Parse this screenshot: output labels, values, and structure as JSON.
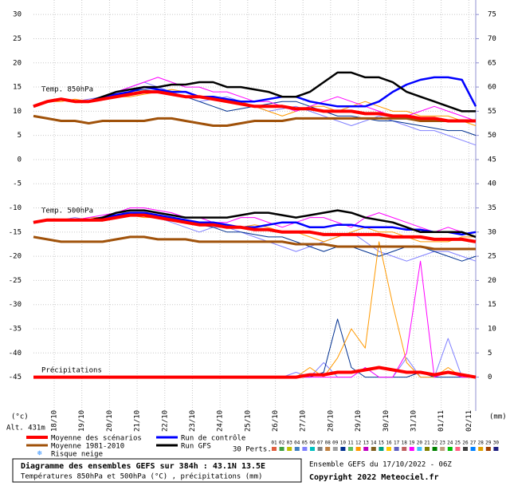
{
  "chart_data": {
    "type": "line",
    "x": [
      0,
      12,
      24,
      36,
      48,
      60,
      72,
      84,
      96,
      108,
      120,
      132,
      144,
      156,
      168,
      180,
      192,
      204,
      216,
      228,
      240,
      252,
      264,
      276,
      288,
      300,
      312,
      324,
      336,
      348,
      360,
      372,
      384
    ],
    "xlim": [
      0,
      384
    ],
    "xticks": [
      {
        "value": 18,
        "label": "18/10"
      },
      {
        "value": 42,
        "label": "19/10"
      },
      {
        "value": 66,
        "label": "20/10"
      },
      {
        "value": 90,
        "label": "21/10"
      },
      {
        "value": 114,
        "label": "22/10"
      },
      {
        "value": 138,
        "label": "23/10"
      },
      {
        "value": 162,
        "label": "24/10"
      },
      {
        "value": 186,
        "label": "25/10"
      },
      {
        "value": 210,
        "label": "26/10"
      },
      {
        "value": 234,
        "label": "27/10"
      },
      {
        "value": 258,
        "label": "28/10"
      },
      {
        "value": 282,
        "label": "29/10"
      },
      {
        "value": 306,
        "label": "30/10"
      },
      {
        "value": 330,
        "label": "31/10"
      },
      {
        "value": 354,
        "label": "01/11"
      },
      {
        "value": 378,
        "label": "02/11"
      }
    ],
    "ylim": [
      -52,
      33
    ],
    "yticks": [
      30,
      25,
      20,
      15,
      10,
      5,
      0,
      -5,
      -10,
      -15,
      -20,
      -25,
      -30,
      -35,
      -40,
      -45
    ],
    "y2lim": [
      -7,
      78
    ],
    "y2ticks": [
      75,
      70,
      65,
      60,
      55,
      50,
      45,
      40,
      35,
      30,
      25,
      20,
      15,
      10,
      5,
      0
    ],
    "grid": true,
    "y_unit_label": "(°c)",
    "y2_unit_label": "(mm)",
    "altitude_label": "Alt. 431m",
    "panel_labels": [
      "Temp. 850hPa",
      "Temp. 500hPa",
      "Précipitations"
    ],
    "series": [
      {
        "name": "Moyenne 1981-2010",
        "color": "#a0520a",
        "values_850": [
          9,
          8.5,
          8,
          8,
          7.5,
          8,
          8,
          8,
          8,
          8.5,
          8.5,
          8,
          7.5,
          7,
          7,
          7.5,
          8,
          8,
          8,
          8.5,
          8.5,
          8.5,
          8.5,
          8.5,
          8.5,
          8.5,
          8.5,
          8.5,
          8,
          8,
          8,
          8,
          8
        ],
        "values_500": [
          -16,
          -16.5,
          -17,
          -17,
          -17,
          -17,
          -16.5,
          -16,
          -16,
          -16.5,
          -16.5,
          -16.5,
          -17,
          -17,
          -17,
          -17,
          -17,
          -17,
          -17,
          -17.5,
          -17.5,
          -17.5,
          -18,
          -18,
          -18,
          -18,
          -18,
          -18,
          -18,
          -18.5,
          -18.5,
          -18.5,
          -18.5
        ]
      },
      {
        "name": "Run de contrôle",
        "color": "#0000ff",
        "values_850": [
          11,
          12,
          12.5,
          12,
          12,
          13,
          13.5,
          14,
          15,
          14.5,
          14,
          14,
          13,
          13,
          12.5,
          12,
          12,
          12.5,
          13,
          13,
          12,
          11.5,
          11,
          11,
          11,
          12,
          14,
          15.5,
          16.5,
          17,
          17,
          16.5,
          11
        ],
        "values_500": [
          -13,
          -12.5,
          -12.5,
          -12.5,
          -12.5,
          -12,
          -11.5,
          -11,
          -11,
          -11.5,
          -12,
          -12.5,
          -13,
          -13,
          -13.5,
          -14,
          -14,
          -13.5,
          -13,
          -13,
          -14,
          -14,
          -13.5,
          -13.5,
          -14,
          -14,
          -14,
          -14.5,
          -14.5,
          -15,
          -15,
          -15.5,
          -15
        ]
      },
      {
        "name": "Run GFS",
        "color": "#000000",
        "values_850": [
          11,
          12,
          12.5,
          12,
          12,
          13,
          14,
          14.5,
          15,
          15,
          15.5,
          15.5,
          16,
          16,
          15,
          15,
          14.5,
          14,
          13,
          13,
          14,
          16,
          18,
          18,
          17,
          17,
          16,
          14,
          13,
          12,
          11,
          10,
          10
        ],
        "values_500": [
          -13,
          -12.5,
          -12.5,
          -12.5,
          -12.5,
          -12,
          -11,
          -10.5,
          -10.5,
          -11,
          -11.5,
          -12,
          -12,
          -12,
          -12,
          -11.5,
          -11,
          -11,
          -11.5,
          -12,
          -11.5,
          -11,
          -10.5,
          -11,
          -12,
          -12.5,
          -13,
          -14,
          -15,
          -15,
          -15,
          -15,
          -16
        ]
      },
      {
        "name": "Moyenne des scénarios",
        "color": "#ff0000",
        "values_850": [
          11,
          12,
          12.5,
          12,
          12,
          12.5,
          13,
          13.5,
          14,
          14,
          13.5,
          13,
          13,
          12.5,
          12,
          11.5,
          11,
          11,
          11,
          10.5,
          10.5,
          10,
          10,
          10,
          9.5,
          9.5,
          9,
          9,
          8.5,
          8.5,
          8,
          8,
          8
        ],
        "values_500": [
          -13,
          -12.5,
          -12.5,
          -12.5,
          -12.5,
          -12.5,
          -12,
          -11.5,
          -11.5,
          -12,
          -12.5,
          -13,
          -13.5,
          -13.5,
          -14,
          -14,
          -14.5,
          -14.5,
          -15,
          -15,
          -15,
          -15.5,
          -15.5,
          -15.5,
          -15.5,
          -15.5,
          -16,
          -16,
          -16,
          -16.5,
          -16.5,
          -16.5,
          -17
        ],
        "values_precip": [
          0,
          0,
          0,
          0,
          0,
          0,
          0,
          0,
          0,
          0,
          0,
          0,
          0,
          0,
          0,
          0,
          0,
          0,
          0,
          0,
          0.5,
          0.5,
          1,
          1,
          1.5,
          2,
          1.5,
          1,
          1,
          0.5,
          1,
          0.5,
          0
        ]
      }
    ],
    "legend_extra": "Risque neige",
    "perturbations": {
      "label": "30 Perts.",
      "members": [
        {
          "name": "01",
          "color": "#e06040"
        },
        {
          "name": "02",
          "color": "#40a040"
        },
        {
          "name": "03",
          "color": "#c0c000"
        },
        {
          "name": "04",
          "color": "#4080c0"
        },
        {
          "name": "05",
          "color": "#8080ff"
        },
        {
          "name": "06",
          "color": "#00c0c0"
        },
        {
          "name": "07",
          "color": "#808080"
        },
        {
          "name": "08",
          "color": "#c08040"
        },
        {
          "name": "09",
          "color": "#a0a0a0"
        },
        {
          "name": "10",
          "color": "#003090"
        },
        {
          "name": "11",
          "color": "#60c060"
        },
        {
          "name": "12",
          "color": "#ff9900"
        },
        {
          "name": "13",
          "color": "#c000c0"
        },
        {
          "name": "14",
          "color": "#806020"
        },
        {
          "name": "15",
          "color": "#00a080"
        },
        {
          "name": "16",
          "color": "#ffcc00"
        },
        {
          "name": "17",
          "color": "#6060c0"
        },
        {
          "name": "18",
          "color": "#c06060"
        },
        {
          "name": "19",
          "color": "#ff00ff"
        },
        {
          "name": "20",
          "color": "#40c0ff"
        },
        {
          "name": "21",
          "color": "#808000"
        },
        {
          "name": "22",
          "color": "#008000"
        },
        {
          "name": "23",
          "color": "#c0a080"
        },
        {
          "name": "24",
          "color": "#00c000"
        },
        {
          "name": "25",
          "color": "#ff6080"
        },
        {
          "name": "26",
          "color": "#404040"
        },
        {
          "name": "27",
          "color": "#0080ff"
        },
        {
          "name": "28",
          "color": "#e0a000"
        },
        {
          "name": "29",
          "color": "#a04000"
        },
        {
          "name": "30",
          "color": "#202080"
        }
      ],
      "series": [
        {
          "name": "05",
          "color": "#8080ff",
          "values_850": [
            11,
            12,
            12.5,
            12,
            12.5,
            13,
            14,
            15,
            16,
            15,
            14,
            13,
            12,
            12.5,
            13,
            12,
            11,
            10,
            10.5,
            11,
            10,
            9,
            8,
            7,
            8,
            9,
            8,
            7,
            6,
            6,
            5,
            4,
            3
          ],
          "values_500": [
            -13,
            -12.5,
            -12.5,
            -12,
            -12.5,
            -12,
            -11,
            -11,
            -11.5,
            -12,
            -13,
            -14,
            -15,
            -14,
            -14,
            -15,
            -16,
            -17,
            -18,
            -19,
            -18,
            -17,
            -16,
            -15,
            -17,
            -19,
            -20,
            -21,
            -20,
            -19,
            -19,
            -20,
            -21
          ],
          "values_precip": [
            0,
            0,
            0,
            0,
            0,
            0,
            0,
            0,
            0,
            0,
            0,
            0,
            0,
            0,
            0,
            0,
            0,
            0,
            0,
            1,
            0,
            3,
            0,
            0,
            2,
            0,
            0,
            4,
            0,
            0,
            8,
            0,
            0
          ]
        },
        {
          "name": "10",
          "color": "#003090",
          "values_850": [
            11,
            12,
            12.5,
            12,
            12,
            12.5,
            13,
            14,
            14.5,
            14,
            13.5,
            13,
            12,
            11,
            10,
            10.5,
            11,
            11.5,
            12,
            12,
            11,
            10,
            9,
            9,
            8.5,
            8,
            8,
            7.5,
            7,
            6.5,
            6,
            6,
            5
          ],
          "values_500": [
            -13,
            -12.5,
            -12.5,
            -12.5,
            -12.5,
            -12,
            -11.5,
            -11,
            -11.5,
            -12,
            -12.5,
            -13,
            -13.5,
            -14,
            -15,
            -15,
            -15.5,
            -16,
            -16,
            -17,
            -18,
            -19,
            -18,
            -18,
            -19,
            -20,
            -19,
            -18,
            -18,
            -19,
            -20,
            -21,
            -20
          ],
          "values_precip": [
            0,
            0,
            0,
            0,
            0,
            0,
            0,
            0,
            0,
            0,
            0,
            0,
            0,
            0,
            0,
            0,
            0,
            0,
            0,
            0,
            0,
            1,
            12,
            2,
            0,
            0,
            0,
            0,
            1,
            0,
            0,
            0,
            0
          ]
        },
        {
          "name": "12",
          "color": "#ff9900",
          "values_850": [
            11,
            12,
            12,
            12.5,
            12,
            12.5,
            13,
            13,
            13.5,
            14,
            14.5,
            14,
            13,
            13,
            12.5,
            12,
            11,
            10,
            9,
            10,
            11,
            11,
            10,
            11,
            12,
            11,
            10,
            10,
            9,
            9,
            9,
            8,
            7
          ],
          "values_500": [
            -13,
            -12.5,
            -12.5,
            -12.5,
            -12,
            -12,
            -11.5,
            -11.5,
            -12,
            -12,
            -12.5,
            -13,
            -13,
            -13.5,
            -14,
            -14,
            -13.5,
            -14,
            -15,
            -15,
            -16,
            -17,
            -16,
            -15,
            -14,
            -15,
            -15,
            -16,
            -17,
            -17,
            -17,
            -16,
            -16
          ],
          "values_precip": [
            0,
            0,
            0,
            0,
            0,
            0,
            0,
            0,
            0,
            0,
            0,
            0,
            0,
            0,
            0,
            0,
            0,
            0,
            0,
            0,
            2,
            0,
            4,
            10,
            6,
            28,
            15,
            3,
            0,
            0,
            2,
            0,
            0
          ]
        },
        {
          "name": "19",
          "color": "#ff00ff",
          "values_850": [
            11,
            12,
            12.5,
            12,
            12,
            13,
            14,
            15,
            16,
            17,
            16,
            15,
            15,
            14,
            14,
            13,
            12,
            12,
            11,
            10,
            11,
            12,
            13,
            12,
            11,
            10,
            9,
            9,
            10,
            11,
            10,
            9,
            8
          ],
          "values_500": [
            -13,
            -12.5,
            -12.5,
            -12.5,
            -12,
            -11.5,
            -11,
            -10,
            -10,
            -10.5,
            -11,
            -12,
            -12,
            -13,
            -13,
            -12,
            -12,
            -13,
            -14,
            -13,
            -12,
            -12,
            -13,
            -14,
            -12,
            -11,
            -12,
            -13,
            -14,
            -15,
            -14,
            -15,
            -16
          ],
          "values_precip": [
            0,
            0,
            0,
            0,
            0,
            0,
            0,
            0,
            0,
            0,
            0,
            0,
            0,
            0,
            0,
            0,
            0,
            0,
            0,
            0,
            0,
            0,
            0,
            0,
            2,
            0,
            0,
            5,
            24,
            0,
            1,
            0,
            0
          ]
        }
      ]
    },
    "footer": {
      "title": "Diagramme des ensembles GEFS sur 384h : 43.1N 13.5E",
      "subtitle": "Températures 850hPa et 500hPa (°C) , précipitations (mm)",
      "run": "Ensemble GEFS du 17/10/2022 - 06Z",
      "copyright": "Copyright 2022 Meteociel.fr"
    }
  }
}
